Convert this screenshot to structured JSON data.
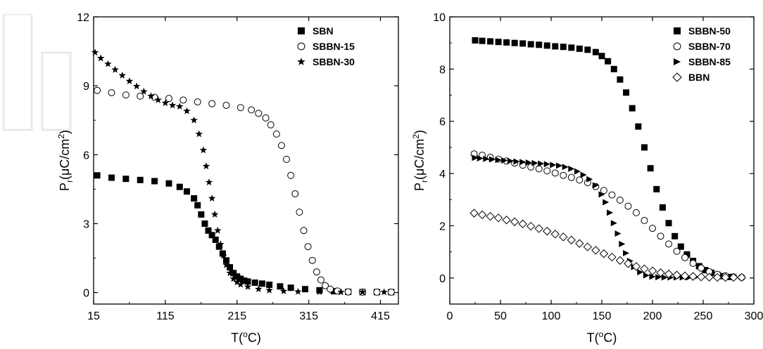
{
  "chart_data": [
    {
      "type": "scatter",
      "xlabel_base": "T(",
      "xlabel_sup": "o",
      "xlabel_tail": "C)",
      "ylabel_P": "P",
      "ylabel_sub": "r",
      "ylabel_mid": "(μC/cm",
      "ylabel_sup": "2",
      "ylabel_end": ")",
      "xlim": [
        15,
        440
      ],
      "ylim": [
        -0.5,
        12
      ],
      "xticks": [
        15,
        115,
        215,
        315,
        415
      ],
      "xtick_labels": [
        "15",
        "115",
        "215",
        "315",
        "415"
      ],
      "yticks": [
        0,
        3,
        6,
        9,
        12
      ],
      "ytick_labels": [
        "0",
        "3",
        "6",
        "9",
        "12"
      ],
      "legend_position": "top-right",
      "series": [
        {
          "name": "SBN",
          "marker": "filled-square",
          "x": [
            20,
            40,
            60,
            80,
            100,
            120,
            135,
            145,
            155,
            160,
            165,
            170,
            175,
            180,
            185,
            190,
            195,
            200,
            205,
            210,
            215,
            220,
            225,
            230,
            240,
            250,
            260,
            275,
            290,
            310,
            330,
            350,
            370,
            390,
            410,
            430
          ],
          "y": [
            5.1,
            5.0,
            4.95,
            4.9,
            4.85,
            4.75,
            4.6,
            4.4,
            4.1,
            3.8,
            3.4,
            3.0,
            2.7,
            2.5,
            2.3,
            2.0,
            1.7,
            1.4,
            1.1,
            0.85,
            0.7,
            0.6,
            0.52,
            0.48,
            0.43,
            0.39,
            0.34,
            0.27,
            0.21,
            0.15,
            0.1,
            0.06,
            0.03,
            0.02,
            0.02,
            0.02
          ]
        },
        {
          "name": "SBBN-15",
          "marker": "open-circle",
          "x": [
            20,
            40,
            60,
            80,
            100,
            120,
            140,
            160,
            180,
            200,
            220,
            235,
            245,
            255,
            262,
            270,
            277,
            284,
            290,
            296,
            302,
            308,
            314,
            320,
            326,
            332,
            338,
            345,
            355,
            370,
            390,
            410,
            430
          ],
          "y": [
            8.8,
            8.7,
            8.6,
            8.55,
            8.5,
            8.45,
            8.38,
            8.3,
            8.22,
            8.15,
            8.05,
            7.95,
            7.8,
            7.6,
            7.3,
            6.9,
            6.4,
            5.8,
            5.1,
            4.3,
            3.5,
            2.7,
            2.0,
            1.4,
            0.9,
            0.55,
            0.3,
            0.15,
            0.07,
            0.03,
            0.02,
            0.02,
            0.02
          ]
        },
        {
          "name": "SBBN-30",
          "marker": "star",
          "x": [
            17,
            25,
            35,
            45,
            55,
            65,
            75,
            85,
            95,
            105,
            115,
            125,
            135,
            145,
            155,
            162,
            168,
            172,
            176,
            180,
            184,
            188,
            192,
            196,
            200,
            205,
            210,
            215,
            220,
            230,
            245,
            260,
            280,
            300,
            330,
            360,
            390,
            420
          ],
          "y": [
            10.45,
            10.2,
            9.95,
            9.7,
            9.45,
            9.2,
            8.98,
            8.75,
            8.55,
            8.38,
            8.25,
            8.15,
            8.1,
            7.9,
            7.5,
            6.9,
            6.2,
            5.5,
            4.8,
            4.1,
            3.4,
            2.7,
            2.1,
            1.6,
            1.2,
            0.85,
            0.6,
            0.45,
            0.35,
            0.25,
            0.15,
            0.1,
            0.06,
            0.04,
            0.03,
            0.02,
            0.02,
            0.02
          ]
        }
      ]
    },
    {
      "type": "scatter",
      "xlabel_base": "T(",
      "xlabel_sup": "o",
      "xlabel_tail": "C)",
      "ylabel_P": "P",
      "ylabel_sub": "r",
      "ylabel_mid": "(μC/cm",
      "ylabel_sup": "2",
      "ylabel_end": ")",
      "xlim": [
        0,
        300
      ],
      "ylim": [
        -1,
        10
      ],
      "xticks": [
        0,
        50,
        100,
        150,
        200,
        250,
        300
      ],
      "xtick_labels": [
        "0",
        "50",
        "100",
        "150",
        "200",
        "250",
        "300"
      ],
      "yticks": [
        0,
        2,
        4,
        6,
        8,
        10
      ],
      "ytick_labels": [
        "0",
        "2",
        "4",
        "6",
        "8",
        "10"
      ],
      "legend_position": "top-right",
      "series": [
        {
          "name": "SBBN-50",
          "marker": "filled-square",
          "x": [
            25,
            32,
            40,
            48,
            56,
            64,
            72,
            80,
            88,
            96,
            104,
            112,
            120,
            128,
            136,
            144,
            150,
            156,
            162,
            168,
            174,
            180,
            186,
            192,
            198,
            204,
            210,
            216,
            222,
            228,
            234,
            240,
            246,
            252,
            258,
            264,
            270,
            276
          ],
          "y": [
            9.1,
            9.08,
            9.06,
            9.04,
            9.02,
            9.0,
            8.98,
            8.95,
            8.93,
            8.9,
            8.87,
            8.85,
            8.82,
            8.78,
            8.74,
            8.65,
            8.5,
            8.3,
            8.0,
            7.6,
            7.1,
            6.5,
            5.8,
            5.0,
            4.2,
            3.4,
            2.7,
            2.1,
            1.6,
            1.2,
            0.9,
            0.65,
            0.45,
            0.3,
            0.2,
            0.12,
            0.07,
            0.04
          ]
        },
        {
          "name": "SBBN-70",
          "marker": "open-circle",
          "x": [
            24,
            32,
            40,
            48,
            56,
            64,
            72,
            80,
            88,
            96,
            104,
            112,
            120,
            128,
            136,
            144,
            152,
            160,
            168,
            176,
            184,
            192,
            200,
            208,
            216,
            224,
            232,
            240,
            248,
            256,
            264,
            272,
            280,
            288
          ],
          "y": [
            4.75,
            4.7,
            4.62,
            4.55,
            4.48,
            4.4,
            4.32,
            4.25,
            4.18,
            4.1,
            4.02,
            3.93,
            3.85,
            3.75,
            3.65,
            3.5,
            3.35,
            3.18,
            2.98,
            2.75,
            2.5,
            2.2,
            1.9,
            1.6,
            1.3,
            1.02,
            0.78,
            0.56,
            0.38,
            0.24,
            0.14,
            0.08,
            0.04,
            0.02
          ]
        },
        {
          "name": "SBBN-85",
          "marker": "filled-triangle",
          "x": [
            25,
            30,
            36,
            42,
            48,
            54,
            60,
            66,
            72,
            78,
            84,
            90,
            96,
            102,
            108,
            114,
            120,
            126,
            132,
            138,
            144,
            150,
            154,
            158,
            162,
            166,
            170,
            174,
            178,
            182,
            188,
            194,
            200,
            206,
            212,
            218,
            224,
            230,
            236,
            242
          ],
          "y": [
            4.6,
            4.58,
            4.56,
            4.54,
            4.52,
            4.5,
            4.48,
            4.46,
            4.44,
            4.42,
            4.4,
            4.38,
            4.36,
            4.33,
            4.3,
            4.25,
            4.18,
            4.08,
            3.95,
            3.78,
            3.55,
            3.2,
            2.9,
            2.5,
            2.1,
            1.7,
            1.3,
            0.95,
            0.65,
            0.42,
            0.22,
            0.1,
            0.05,
            0.03,
            0.02,
            0.02,
            0.02,
            0.02,
            0.02,
            0.02
          ]
        },
        {
          "name": "BBN",
          "marker": "open-diamond",
          "x": [
            24,
            32,
            40,
            48,
            56,
            64,
            72,
            80,
            88,
            96,
            104,
            112,
            120,
            128,
            136,
            144,
            152,
            160,
            168,
            176,
            184,
            192,
            200,
            208,
            216,
            224,
            232,
            240,
            248,
            256,
            264,
            272,
            280,
            288
          ],
          "y": [
            2.48,
            2.42,
            2.36,
            2.3,
            2.22,
            2.15,
            2.07,
            1.98,
            1.89,
            1.79,
            1.68,
            1.57,
            1.45,
            1.32,
            1.19,
            1.06,
            0.93,
            0.8,
            0.67,
            0.55,
            0.44,
            0.35,
            0.27,
            0.2,
            0.15,
            0.11,
            0.08,
            0.06,
            0.04,
            0.03,
            0.02,
            0.02,
            0.02,
            0.02
          ]
        }
      ]
    }
  ]
}
